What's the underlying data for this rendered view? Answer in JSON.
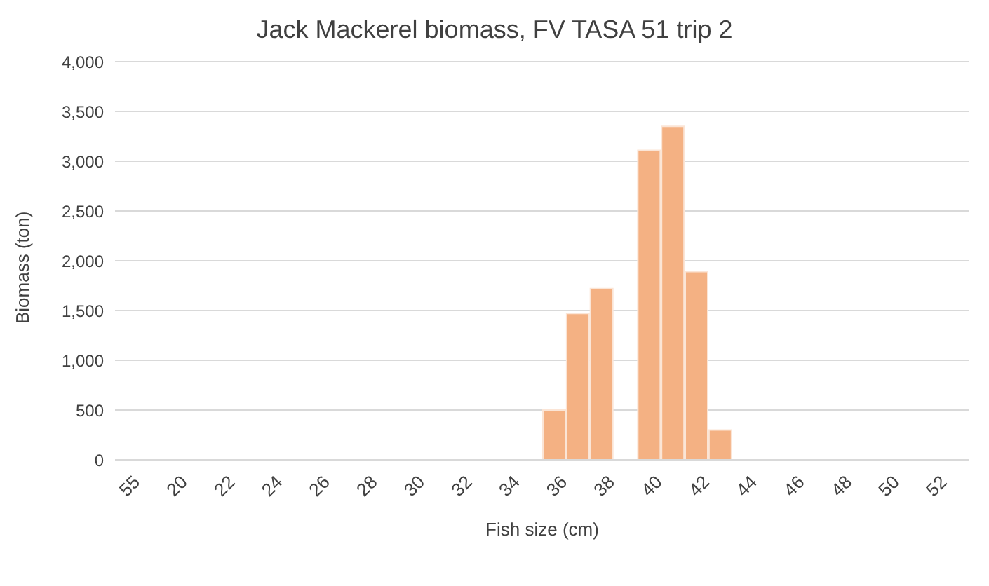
{
  "chart_data": {
    "type": "bar",
    "title": "Jack Mackerel biomass, FV TASA 51 trip 2",
    "xlabel": "Fish size (cm)",
    "ylabel": "Biomass (ton)",
    "categories": [
      "55",
      null,
      "20",
      null,
      "22",
      null,
      "24",
      null,
      "26",
      null,
      "28",
      null,
      "30",
      null,
      "32",
      null,
      "34",
      null,
      "36",
      null,
      "38",
      null,
      "40",
      null,
      "42",
      null,
      "44",
      null,
      "46",
      null,
      "48",
      null,
      "50",
      null,
      "52",
      null
    ],
    "values": [
      0,
      0,
      0,
      0,
      0,
      0,
      0,
      0,
      0,
      0,
      0,
      0,
      0,
      0,
      0,
      0,
      0,
      0,
      500,
      1470,
      1720,
      0,
      3110,
      3350,
      1890,
      300,
      0,
      0,
      0,
      0,
      0,
      0,
      0,
      0,
      0,
      0
    ],
    "color": "#f4b183",
    "ylim": [
      0,
      4000
    ],
    "yticks": [
      0,
      {
        "value": 500,
        "label": "500"
      },
      {
        "value": 1000,
        "label": "1,000"
      },
      {
        "value": 1500,
        "label": "1,500"
      },
      {
        "value": 2000,
        "label": "2,000"
      },
      {
        "value": 2500,
        "label": "2,500"
      },
      {
        "value": 3000,
        "label": "3,000"
      },
      {
        "value": 3500,
        "label": "3,500"
      },
      {
        "value": 4000,
        "label": "4,000"
      }
    ],
    "grid": "y",
    "legend": false
  }
}
